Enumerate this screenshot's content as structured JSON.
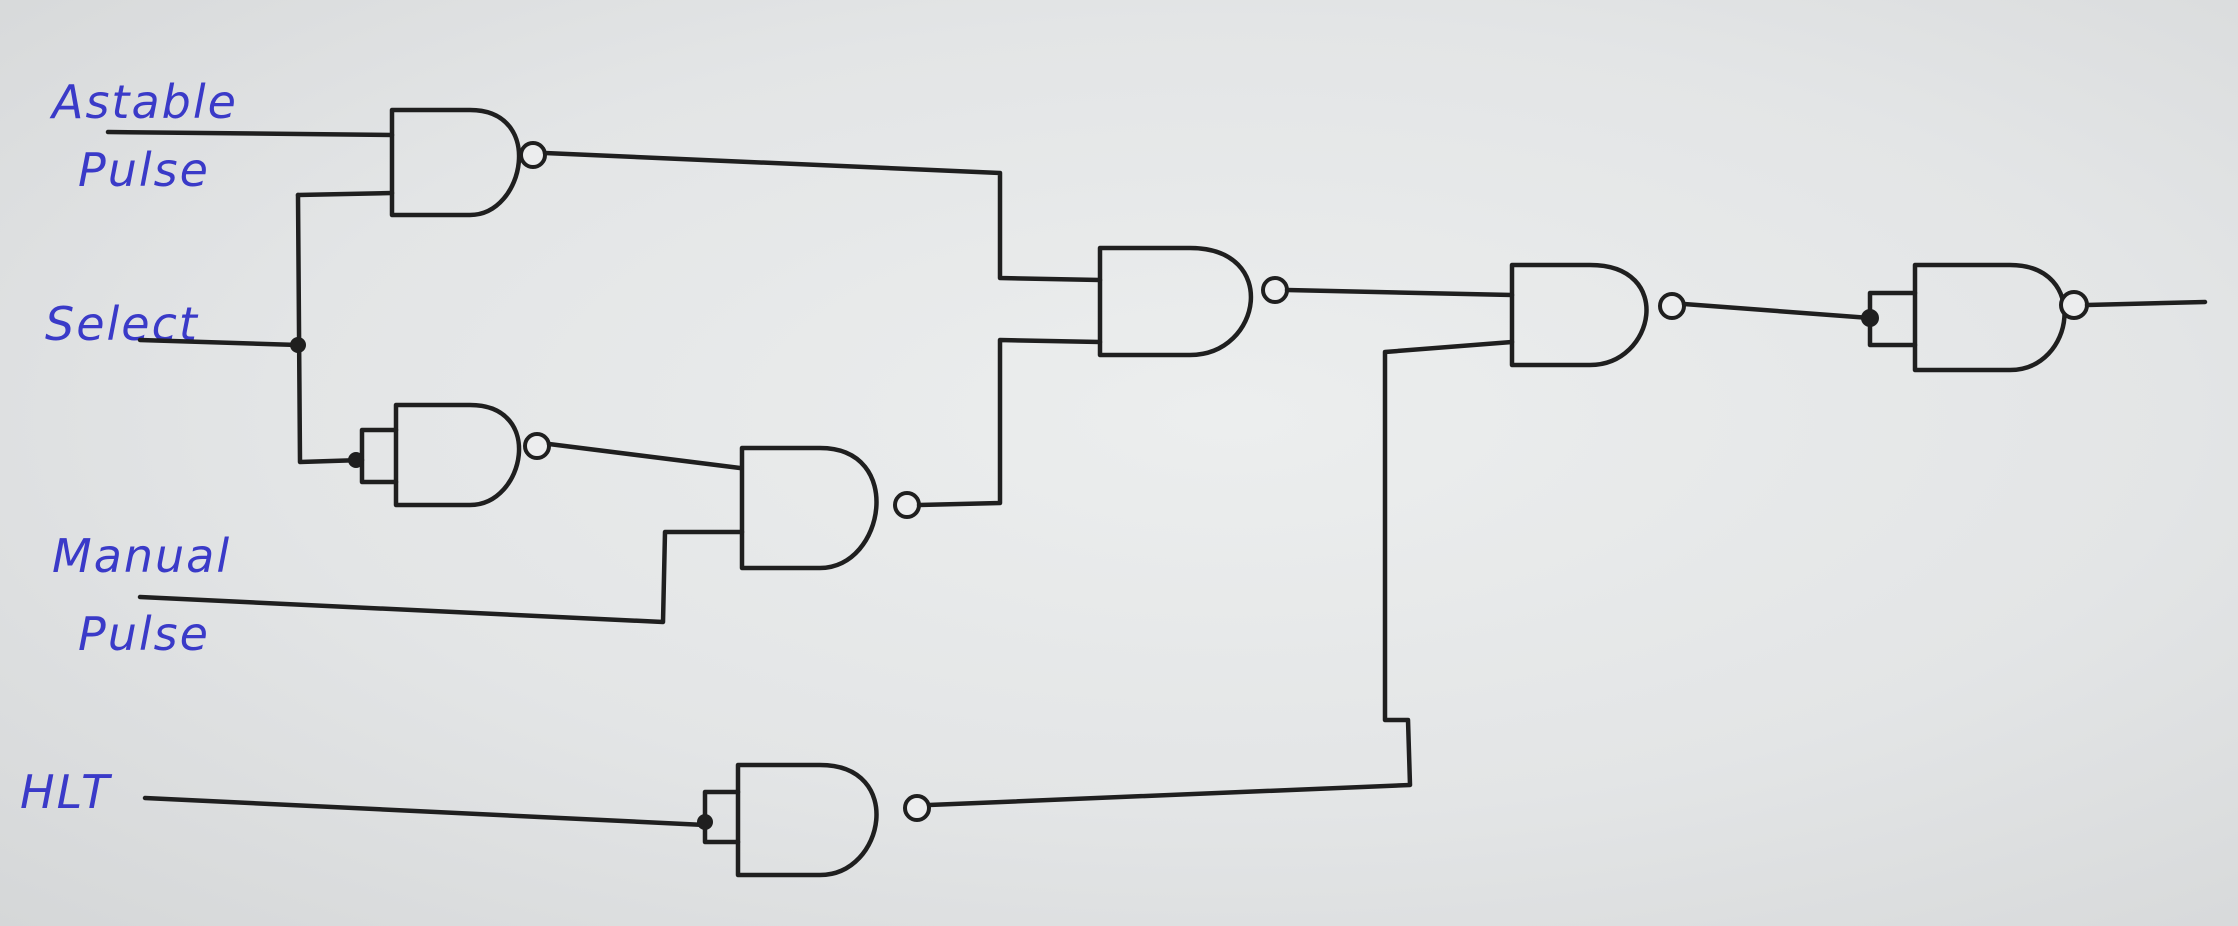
{
  "diagram": {
    "labels": {
      "astable_1": "Astable",
      "astable_2": "Pulse",
      "select": "Select",
      "manual_1": "Manual",
      "manual_2": "Pulse",
      "hlt": "HLT"
    },
    "ink_color": "#1f1f1f",
    "label_color": "#3a3ac8",
    "gate_type": "NAND",
    "gate_count": 7
  }
}
